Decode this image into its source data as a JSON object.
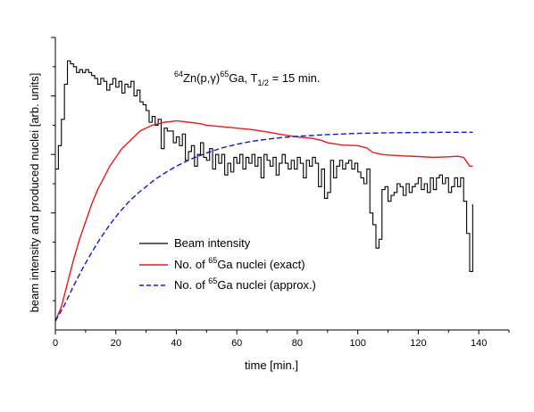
{
  "chart_data": {
    "type": "line",
    "xlabel": "time [min.]",
    "ylabel": "beam intensity and produced nuclei [arb. units]",
    "xlim": [
      0,
      150
    ],
    "ylim": [
      0,
      1
    ],
    "x_ticks": [
      "0",
      "20",
      "40",
      "60",
      "80",
      "100",
      "120",
      "140"
    ],
    "y_ticks_labeled": false,
    "grid": false,
    "legend_position": "center-left",
    "annotation": {
      "mass_a": "64",
      "element_a": "Zn(p,",
      "gamma": "γ",
      "close": ")",
      "mass_b": "65",
      "element_b": "Ga, T",
      "half_sub": "1/2",
      "rest": " = 15 min."
    },
    "series": [
      {
        "name": "Beam intensity",
        "legend_pre": "Beam intensity",
        "legend_sup": "",
        "legend_post": "",
        "color": "#000000",
        "style": "step",
        "x": [
          0,
          1,
          2,
          3,
          4,
          5,
          6,
          7,
          8,
          9,
          10,
          11,
          12,
          13,
          14,
          15,
          16,
          17,
          18,
          19,
          20,
          21,
          22,
          23,
          24,
          25,
          26,
          27,
          28,
          29,
          30,
          31,
          32,
          33,
          34,
          35,
          36,
          37,
          38,
          39,
          40,
          41,
          42,
          43,
          44,
          45,
          46,
          47,
          48,
          49,
          50,
          51,
          52,
          53,
          54,
          55,
          56,
          57,
          58,
          59,
          60,
          61,
          62,
          63,
          64,
          65,
          66,
          67,
          68,
          69,
          70,
          71,
          72,
          73,
          74,
          75,
          76,
          77,
          78,
          79,
          80,
          81,
          82,
          83,
          84,
          85,
          86,
          87,
          88,
          89,
          90,
          91,
          92,
          93,
          94,
          95,
          96,
          97,
          98,
          99,
          100,
          101,
          102,
          103,
          104,
          105,
          106,
          107,
          108,
          109,
          110,
          111,
          112,
          113,
          114,
          115,
          116,
          117,
          118,
          119,
          120,
          121,
          122,
          123,
          124,
          125,
          126,
          127,
          128,
          129,
          130,
          131,
          132,
          133,
          134,
          135,
          136,
          137,
          138
        ],
        "y": [
          0.55,
          0.63,
          0.72,
          0.84,
          0.92,
          0.91,
          0.9,
          0.88,
          0.89,
          0.88,
          0.89,
          0.88,
          0.87,
          0.86,
          0.84,
          0.86,
          0.85,
          0.82,
          0.84,
          0.86,
          0.83,
          0.85,
          0.81,
          0.84,
          0.83,
          0.85,
          0.8,
          0.82,
          0.78,
          0.77,
          0.75,
          0.71,
          0.73,
          0.7,
          0.72,
          0.62,
          0.69,
          0.68,
          0.68,
          0.64,
          0.66,
          0.63,
          0.67,
          0.58,
          0.61,
          0.63,
          0.56,
          0.6,
          0.64,
          0.59,
          0.58,
          0.62,
          0.55,
          0.6,
          0.57,
          0.6,
          0.53,
          0.57,
          0.54,
          0.59,
          0.57,
          0.6,
          0.55,
          0.59,
          0.57,
          0.6,
          0.56,
          0.59,
          0.52,
          0.6,
          0.58,
          0.56,
          0.59,
          0.53,
          0.57,
          0.6,
          0.57,
          0.55,
          0.58,
          0.55,
          0.59,
          0.57,
          0.52,
          0.58,
          0.56,
          0.59,
          0.57,
          0.49,
          0.55,
          0.45,
          0.47,
          0.58,
          0.52,
          0.56,
          0.58,
          0.55,
          0.57,
          0.58,
          0.55,
          0.57,
          0.54,
          0.52,
          0.5,
          0.55,
          0.4,
          0.36,
          0.28,
          0.31,
          0.48,
          0.49,
          0.44,
          0.46,
          0.47,
          0.5,
          0.49,
          0.46,
          0.5,
          0.47,
          0.49,
          0.5,
          0.52,
          0.48,
          0.5,
          0.47,
          0.52,
          0.48,
          0.52,
          0.53,
          0.5,
          0.52,
          0.47,
          0.49,
          0.52,
          0.49,
          0.52,
          0.44,
          0.33,
          0.2,
          0.43
        ]
      },
      {
        "name": "No. of 65Ga nuclei (exact)",
        "legend_pre": "No. of ",
        "legend_sup": "65",
        "legend_post": "Ga nuclei (exact)",
        "color": "#e8191b",
        "style": "line",
        "x": [
          0,
          2,
          4,
          6,
          8,
          10,
          12,
          14,
          16,
          18,
          20,
          22,
          24,
          26,
          28,
          30,
          32,
          34,
          36,
          38,
          40,
          42,
          44,
          46,
          48,
          50,
          55,
          60,
          65,
          70,
          75,
          80,
          85,
          88,
          90,
          95,
          100,
          103,
          105,
          108,
          110,
          115,
          120,
          125,
          130,
          133,
          135,
          137,
          138
        ],
        "y": [
          0.03,
          0.08,
          0.16,
          0.24,
          0.31,
          0.37,
          0.43,
          0.48,
          0.52,
          0.56,
          0.59,
          0.62,
          0.64,
          0.66,
          0.68,
          0.69,
          0.7,
          0.705,
          0.71,
          0.712,
          0.715,
          0.713,
          0.71,
          0.708,
          0.705,
          0.7,
          0.695,
          0.69,
          0.685,
          0.677,
          0.668,
          0.66,
          0.655,
          0.648,
          0.64,
          0.632,
          0.63,
          0.622,
          0.607,
          0.6,
          0.598,
          0.595,
          0.593,
          0.59,
          0.592,
          0.594,
          0.59,
          0.56,
          0.56
        ]
      },
      {
        "name": "No. of 65Ga nuclei (approx.)",
        "legend_pre": "No. of ",
        "legend_sup": "65",
        "legend_post": "Ga nuclei (approx.)",
        "color": "#1515d6",
        "style": "dashed",
        "x": [
          0,
          3,
          6,
          9,
          12,
          15,
          18,
          21,
          24,
          27,
          30,
          33,
          36,
          40,
          45,
          50,
          55,
          60,
          65,
          70,
          75,
          80,
          90,
          100,
          110,
          120,
          130,
          138
        ],
        "y": [
          0.03,
          0.085,
          0.15,
          0.21,
          0.265,
          0.315,
          0.36,
          0.4,
          0.435,
          0.465,
          0.49,
          0.515,
          0.535,
          0.56,
          0.585,
          0.605,
          0.622,
          0.635,
          0.645,
          0.652,
          0.658,
          0.662,
          0.668,
          0.672,
          0.674,
          0.675,
          0.676,
          0.676
        ]
      }
    ]
  }
}
